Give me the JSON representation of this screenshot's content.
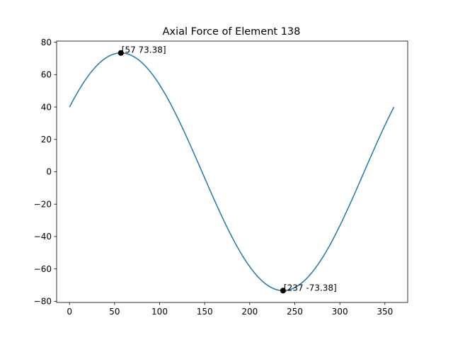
{
  "chart_data": {
    "type": "line",
    "title": "Axial Force of Element 138",
    "xlabel": "",
    "ylabel": "",
    "xlim": [
      -14.3,
      375.3
    ],
    "ylim": [
      -80.7,
      80.7
    ],
    "xticks": [
      0,
      50,
      100,
      150,
      200,
      250,
      300,
      350
    ],
    "yticks": [
      -80,
      -60,
      -40,
      -20,
      0,
      20,
      40,
      60,
      80
    ],
    "grid": false,
    "series": [
      {
        "color": "#1f77b4",
        "x_range": [
          0,
          360
        ],
        "function": "A*cos((x - peak_x) * pi / 180)",
        "amplitude": 73.38,
        "peak_x": 57
      }
    ],
    "markers": [
      {
        "x": 57,
        "y": 73.38,
        "label": "[57 73.38]"
      },
      {
        "x": 237,
        "y": -73.38,
        "label": "[237 -73.38]"
      }
    ]
  }
}
